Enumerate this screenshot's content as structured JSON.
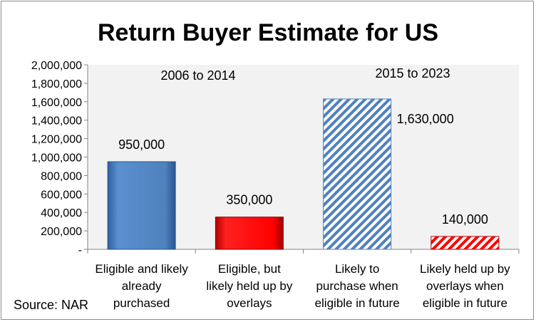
{
  "chart_data": {
    "type": "bar",
    "title": "Return Buyer Estimate for US",
    "categories": [
      [
        "Eligible and likely",
        "already",
        "purchased"
      ],
      [
        "Eligible, but",
        "likely held up by",
        "overlays"
      ],
      [
        "Likely to",
        "purchase when",
        "eligible in future"
      ],
      [
        "Likely held up by",
        "overlays when",
        "eligible in future"
      ]
    ],
    "values": [
      950000,
      350000,
      1630000,
      140000
    ],
    "value_labels": [
      "950,000",
      "350,000",
      "1,630,000",
      "140,000"
    ],
    "bar_colors": [
      "#4f81bd",
      "#ff0000",
      "#4f81bd",
      "#ff0000"
    ],
    "bar_styles": [
      "solid",
      "solid",
      "hatched",
      "hatched"
    ],
    "ylim": [
      0,
      2000000
    ],
    "yticks": [
      0,
      200000,
      400000,
      600000,
      800000,
      1000000,
      1200000,
      1400000,
      1600000,
      1800000,
      2000000
    ],
    "ytick_labels": [
      "-",
      "200,000",
      "400,000",
      "600,000",
      "800,000",
      "1,000,000",
      "1,200,000",
      "1,400,000",
      "1,600,000",
      "1,800,000",
      "2,000,000"
    ],
    "periods": [
      "2006 to 2014",
      "2015 to 2023"
    ],
    "source": "Source: NAR",
    "plot_background": "#f2f2f2",
    "grid": false,
    "legend": "none"
  }
}
